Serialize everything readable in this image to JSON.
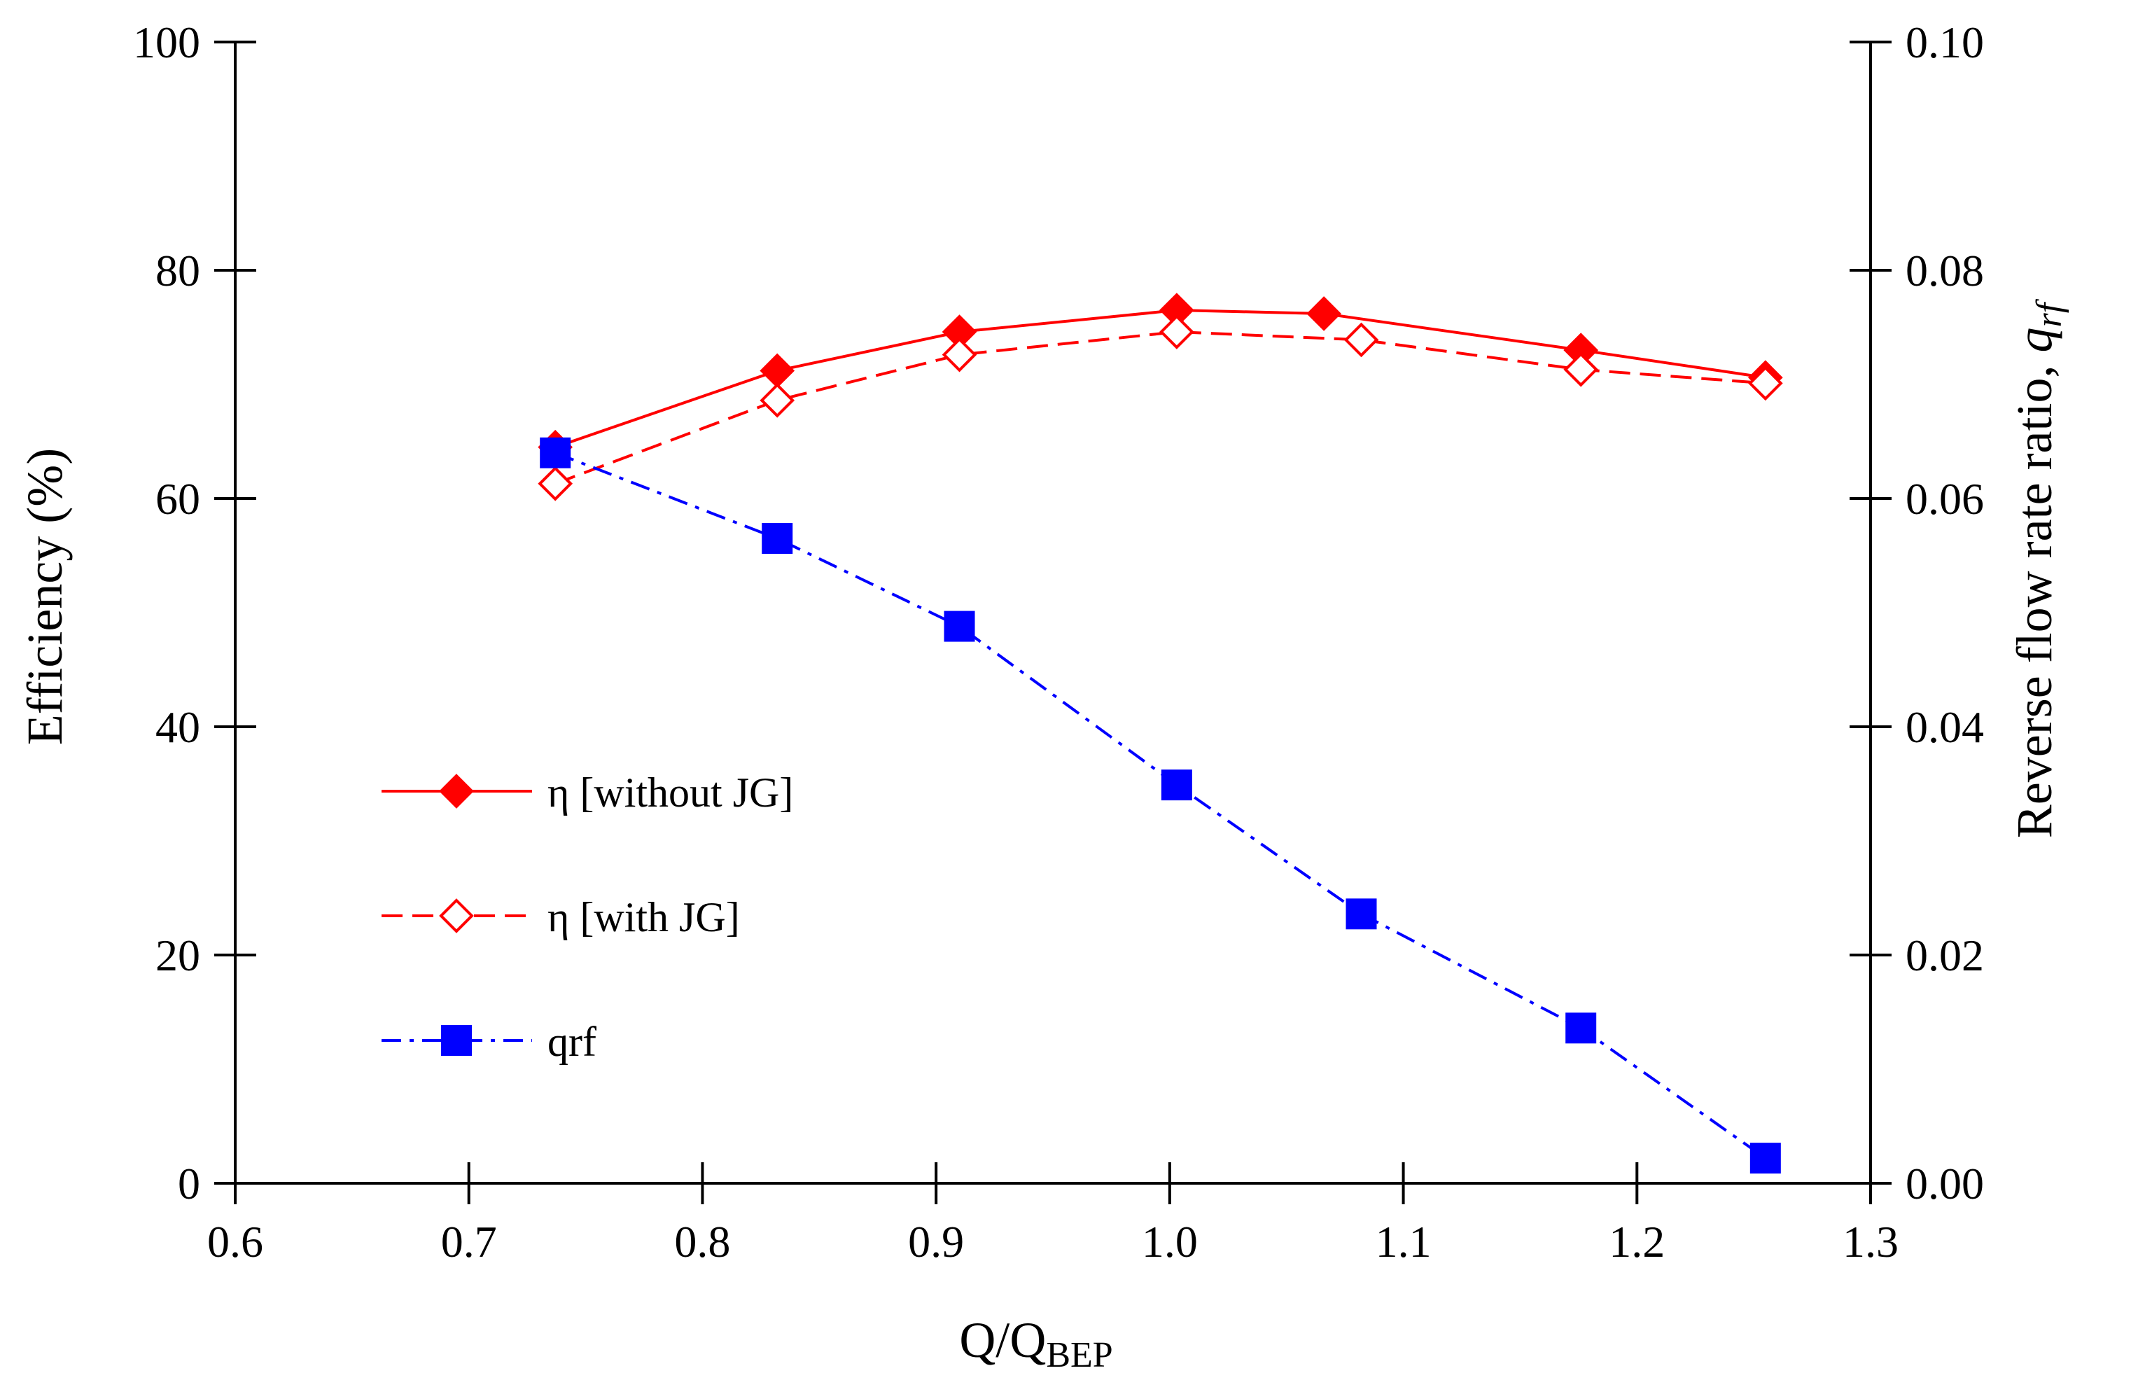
{
  "chart_data": {
    "type": "line",
    "xlabel": "Q/Q",
    "xlabel_sub": "BEP",
    "ylabel": "Efficiency (%)",
    "y2label": "Reverse flow rate ratio, ",
    "y2label_italic": "q",
    "y2label_sub": "rf",
    "xlim": [
      0.6,
      1.3
    ],
    "ylim": [
      0,
      100
    ],
    "y2lim": [
      0,
      0.1
    ],
    "xticks": [
      "0.6",
      "0.7",
      "0.8",
      "0.9",
      "1.0",
      "1.1",
      "1.2",
      "1.3"
    ],
    "yticks": [
      "0",
      "20",
      "40",
      "60",
      "80",
      "100"
    ],
    "y2ticks": [
      "0.00",
      "0.02",
      "0.04",
      "0.06",
      "0.08",
      "0.10"
    ],
    "grid": false,
    "legend_position": "center-left",
    "series": [
      {
        "name": "η [without JG]",
        "axis": "left",
        "color": "#ff0000",
        "line_style": "solid",
        "marker": "diamond-filled",
        "x": [
          0.737,
          0.832,
          0.91,
          1.003,
          1.066,
          1.176,
          1.255
        ],
        "values": [
          64.5,
          71.2,
          74.6,
          76.5,
          76.2,
          73.0,
          70.6
        ]
      },
      {
        "name": "η [with JG]",
        "axis": "left",
        "color": "#ff0000",
        "line_style": "dashed",
        "marker": "diamond-open",
        "x": [
          0.737,
          0.832,
          0.91,
          1.003,
          1.082,
          1.176,
          1.255
        ],
        "values": [
          61.3,
          68.6,
          72.6,
          74.6,
          73.9,
          71.3,
          70.1
        ]
      },
      {
        "name": "qrf",
        "axis": "right",
        "color": "#0000ff",
        "line_style": "dashdot",
        "marker": "square-filled",
        "x": [
          0.737,
          0.832,
          0.91,
          1.003,
          1.082,
          1.176,
          1.255
        ],
        "values": [
          0.064,
          0.0565,
          0.0488,
          0.0349,
          0.0236,
          0.0136,
          0.0022
        ]
      }
    ]
  }
}
